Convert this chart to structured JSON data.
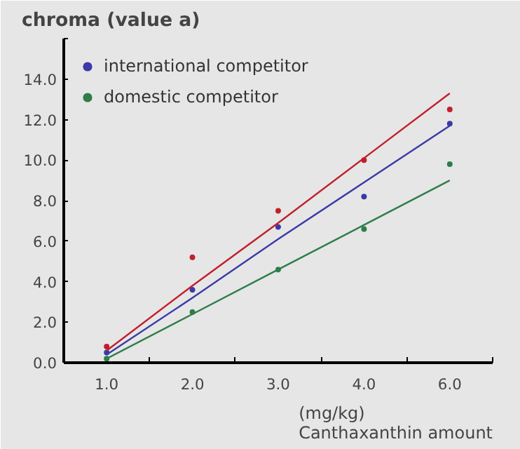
{
  "chart_data": {
    "type": "scatter",
    "title": "chroma (value a)",
    "xlabel": "(mg/kg)\nCanthaxanthin amount",
    "categories": [
      "1.0",
      "2.0",
      "3.0",
      "4.0",
      "6.0"
    ],
    "series": [
      {
        "color": "#c0202a",
        "values": [
          0.8,
          5.2,
          7.5,
          10.0,
          12.5
        ]
      },
      {
        "name": "international competitor",
        "color": "#3a3aa8",
        "values": [
          0.5,
          3.6,
          6.7,
          8.2,
          11.8
        ]
      },
      {
        "name": "domestic competitor",
        "color": "#2e7d4a",
        "values": [
          0.2,
          2.5,
          4.6,
          6.6,
          9.8
        ]
      },
      {
        "type": "line",
        "marker": "none",
        "color": "#c0202a",
        "values": [
          0.6,
          3.8,
          6.9,
          10.1,
          13.3
        ]
      },
      {
        "type": "line",
        "marker": "none",
        "color": "#3a3aa8",
        "values": [
          0.4,
          3.2,
          6.1,
          8.9,
          11.7
        ]
      },
      {
        "type": "line",
        "marker": "none",
        "color": "#2e7d4a",
        "values": [
          0.2,
          2.4,
          4.6,
          6.8,
          9.0
        ]
      }
    ],
    "ylim": [
      0,
      16
    ],
    "yticks": [
      {
        "value": 0,
        "label": "0.0"
      },
      {
        "value": 2,
        "label": "2.0"
      },
      {
        "value": 4,
        "label": "4.0"
      },
      {
        "value": 6,
        "label": "6.0"
      },
      {
        "value": 8,
        "label": "8.0"
      },
      {
        "value": 10,
        "label": "10.0"
      },
      {
        "value": 12,
        "label": "12.0"
      },
      {
        "value": 14,
        "label": "14.0"
      },
      {
        "value": 16,
        "label": null
      }
    ],
    "marker": "circle",
    "legend": "top left"
  }
}
